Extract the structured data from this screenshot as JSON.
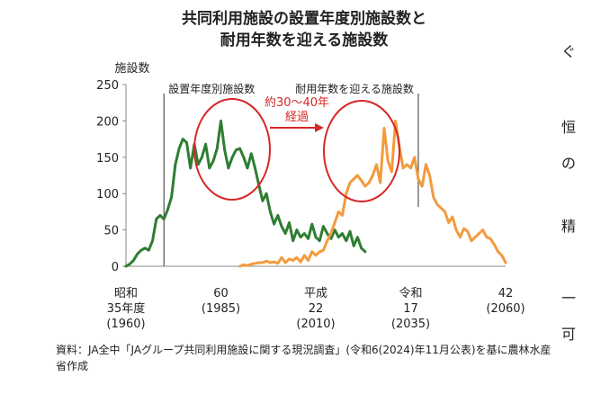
{
  "page": {
    "source_note": "資料：JA全中「JAグループ共同利用施設に関する現況調査」(令和6(2024)年11月公表)を基に農林水産省作成",
    "edge_fragments": [
      "ぐ",
      "恒",
      "の",
      "精",
      "一",
      "可"
    ]
  },
  "chart_data": {
    "type": "line",
    "title_lines": [
      "共同利用施設の設置年度別施設数と",
      "耐用年数を迎える施設数"
    ],
    "ylabel": "施設数",
    "ylim": [
      0,
      250
    ],
    "yticks": [
      0,
      50,
      100,
      150,
      200,
      250
    ],
    "xlim": [
      1960,
      2060
    ],
    "grid": false,
    "xticks": [
      {
        "x": 1960,
        "lines": [
          "昭和",
          "35年度",
          "(1960)"
        ]
      },
      {
        "x": 1985,
        "lines": [
          "60",
          "(1985)"
        ]
      },
      {
        "x": 2010,
        "lines": [
          "平成",
          "22",
          "(2010)"
        ]
      },
      {
        "x": 2035,
        "lines": [
          "令和",
          "17",
          "(2035)"
        ]
      },
      {
        "x": 2060,
        "lines": [
          "42",
          "(2060)"
        ]
      }
    ],
    "colors": {
      "green": "#2e7d32",
      "orange": "#f39a3d",
      "highlight": "#d62728"
    },
    "annotations": {
      "installed_label": "設置年度別施設数",
      "lifespan_label": "耐用年数を迎える施設数",
      "arrow_label": [
        "約30〜40年",
        "経過"
      ],
      "installed_divider_x": 1970,
      "lifespan_divider_x": 2037
    },
    "series": [
      {
        "color": "green",
        "x": [
          1960,
          1961,
          1962,
          1963,
          1964,
          1965,
          1966,
          1967,
          1968,
          1969,
          1970,
          1971,
          1972,
          1973,
          1974,
          1975,
          1976,
          1977,
          1978,
          1979,
          1980,
          1981,
          1982,
          1983,
          1984,
          1985,
          1986,
          1987,
          1988,
          1989,
          1990,
          1991,
          1992,
          1993,
          1994,
          1995,
          1996,
          1997,
          1998,
          1999,
          2000,
          2001,
          2002,
          2003,
          2004,
          2005,
          2006,
          2007,
          2008,
          2009,
          2010,
          2011,
          2012,
          2013,
          2014,
          2015,
          2016,
          2017,
          2018,
          2019,
          2020,
          2021,
          2022,
          2023
        ],
        "values": [
          0,
          3,
          8,
          17,
          22,
          25,
          22,
          35,
          65,
          70,
          65,
          78,
          95,
          140,
          162,
          175,
          170,
          135,
          168,
          140,
          150,
          168,
          135,
          145,
          162,
          200,
          160,
          135,
          150,
          160,
          162,
          150,
          135,
          155,
          135,
          112,
          90,
          100,
          75,
          58,
          70,
          55,
          45,
          60,
          35,
          50,
          40,
          45,
          38,
          58,
          40,
          35,
          55,
          45,
          38,
          50,
          40,
          45,
          35,
          48,
          28,
          40,
          25,
          20
        ]
      },
      {
        "color": "orange",
        "x": [
          1990,
          1991,
          1992,
          1993,
          1994,
          1995,
          1996,
          1997,
          1998,
          1999,
          2000,
          2001,
          2002,
          2003,
          2004,
          2005,
          2006,
          2007,
          2008,
          2009,
          2010,
          2011,
          2012,
          2013,
          2014,
          2015,
          2016,
          2017,
          2018,
          2019,
          2020,
          2021,
          2022,
          2023,
          2024,
          2025,
          2026,
          2027,
          2028,
          2029,
          2030,
          2031,
          2032,
          2033,
          2034,
          2035,
          2036,
          2037,
          2038,
          2039,
          2040,
          2041,
          2042,
          2043,
          2044,
          2045,
          2046,
          2047,
          2048,
          2049,
          2050,
          2051,
          2052,
          2053,
          2054,
          2055,
          2056,
          2057,
          2058,
          2059,
          2060
        ],
        "values": [
          0,
          2,
          1,
          3,
          4,
          5,
          5,
          7,
          5,
          6,
          4,
          12,
          5,
          10,
          8,
          12,
          6,
          15,
          8,
          20,
          15,
          20,
          22,
          35,
          45,
          60,
          75,
          70,
          100,
          115,
          120,
          125,
          118,
          110,
          115,
          125,
          140,
          115,
          190,
          145,
          130,
          200,
          165,
          135,
          140,
          135,
          150,
          120,
          110,
          140,
          125,
          95,
          85,
          80,
          75,
          60,
          68,
          50,
          40,
          52,
          48,
          35,
          40,
          45,
          50,
          40,
          38,
          30,
          20,
          15,
          5
        ]
      }
    ]
  }
}
